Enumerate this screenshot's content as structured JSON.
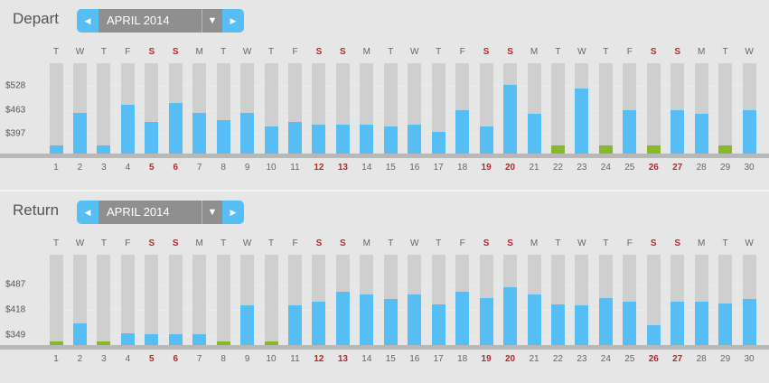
{
  "weekdays": [
    "T",
    "W",
    "T",
    "F",
    "S",
    "S",
    "M",
    "T",
    "W",
    "T",
    "F",
    "S",
    "S",
    "M",
    "T",
    "W",
    "T",
    "F",
    "S",
    "S",
    "M",
    "T",
    "W",
    "T",
    "F",
    "S",
    "S",
    "M",
    "T",
    "W"
  ],
  "days": [
    "1",
    "2",
    "3",
    "4",
    "5",
    "6",
    "7",
    "8",
    "9",
    "10",
    "11",
    "12",
    "13",
    "14",
    "15",
    "16",
    "17",
    "18",
    "19",
    "20",
    "21",
    "22",
    "23",
    "24",
    "25",
    "26",
    "27",
    "28",
    "29",
    "30"
  ],
  "weekend": [
    5,
    6,
    12,
    13,
    19,
    20,
    26,
    27
  ],
  "colors": {
    "accent": "#56bef4",
    "lowest": "#87b827",
    "weekend": "#b8282a",
    "track": "#cfcfcf"
  },
  "icons": {
    "prev": "caret-left-icon",
    "next": "caret-right-icon",
    "dropdown": "caret-down-icon"
  },
  "depart": {
    "title": "Depart",
    "month": "APRIL 2014",
    "ticks": [
      "$528",
      "$463",
      "$397"
    ],
    "tick_values": [
      528,
      463,
      397
    ],
    "chart_data": {
      "type": "bar",
      "categories": [
        "1",
        "2",
        "3",
        "4",
        "5",
        "6",
        "7",
        "8",
        "9",
        "10",
        "11",
        "12",
        "13",
        "14",
        "15",
        "16",
        "17",
        "18",
        "19",
        "20",
        "21",
        "22",
        "23",
        "24",
        "25",
        "26",
        "27",
        "28",
        "29",
        "30"
      ],
      "values": [
        367,
        455,
        367,
        476,
        431,
        481,
        455,
        434,
        455,
        418,
        430,
        422,
        422,
        422,
        418,
        422,
        403,
        463,
        418,
        530,
        452,
        367,
        522,
        367,
        463,
        367,
        463,
        452,
        367,
        461
      ],
      "lowest": [
        22,
        24,
        26,
        29
      ],
      "ylim": [
        344,
        590
      ]
    }
  },
  "return": {
    "title": "Return",
    "month": "APRIL 2014",
    "ticks": [
      "$487",
      "$418",
      "$349"
    ],
    "tick_values": [
      487,
      418,
      349
    ],
    "chart_data": {
      "type": "bar",
      "categories": [
        "1",
        "2",
        "3",
        "4",
        "5",
        "6",
        "7",
        "8",
        "9",
        "10",
        "11",
        "12",
        "13",
        "14",
        "15",
        "16",
        "17",
        "18",
        "19",
        "20",
        "21",
        "22",
        "23",
        "24",
        "25",
        "26",
        "27",
        "28",
        "29",
        "30"
      ],
      "values": [
        331,
        381,
        331,
        353,
        351,
        351,
        351,
        331,
        430,
        331,
        432,
        442,
        469,
        462,
        449,
        462,
        433,
        468,
        451,
        480,
        462,
        434,
        432,
        451,
        440,
        376,
        441,
        440,
        437,
        449
      ],
      "lowest": [
        1,
        3,
        8,
        10
      ],
      "ylim": [
        322,
        570
      ]
    }
  }
}
